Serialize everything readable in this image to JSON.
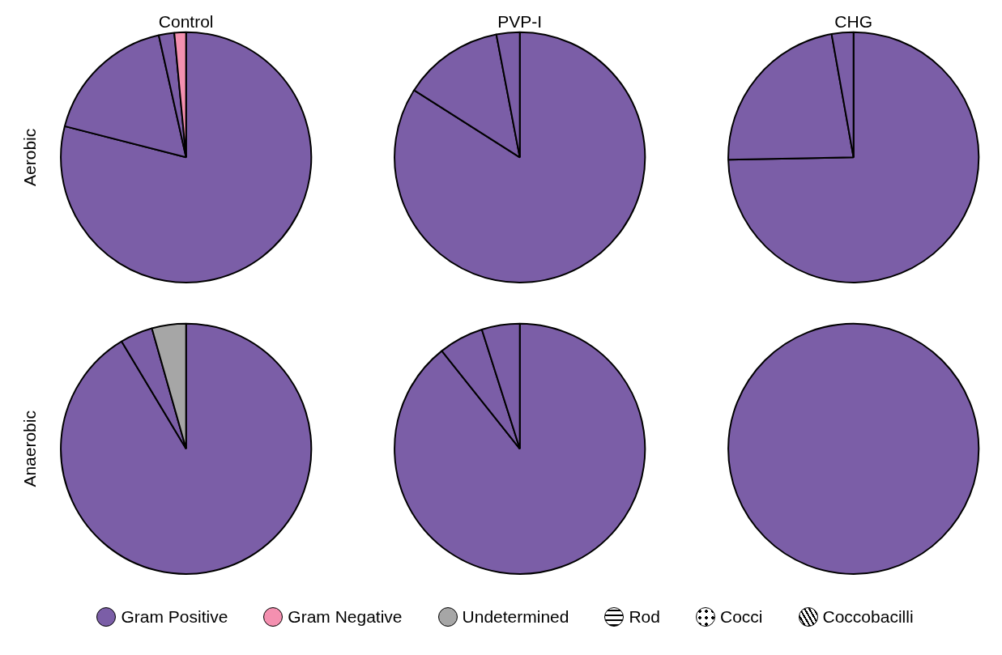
{
  "chart_data": [
    {
      "type": "pie",
      "title": "Control",
      "ylabel": "Aerobic",
      "categories": [
        null,
        null,
        null,
        null
      ],
      "values": [
        79,
        17.5,
        2,
        1.5
      ],
      "colors": [
        "#7b5ea7",
        "#7b5ea7",
        "#7b5ea7",
        "#f490b0"
      ]
    },
    {
      "type": "pie",
      "title": "PVP-I",
      "categories": [
        null,
        null,
        null
      ],
      "values": [
        84,
        13,
        3
      ],
      "colors": [
        "#7b5ea7",
        "#7b5ea7",
        "#7b5ea7"
      ]
    },
    {
      "type": "pie",
      "title": "CHG",
      "categories": [
        null,
        null,
        null
      ],
      "values": [
        74.7,
        22.5,
        2.8
      ],
      "colors": [
        "#7b5ea7",
        "#7b5ea7",
        "#7b5ea7"
      ]
    },
    {
      "type": "pie",
      "ylabel": "Anaerobic",
      "categories": [
        null,
        null,
        null
      ],
      "values": [
        91.4,
        4.2,
        4.4
      ],
      "colors": [
        "#7b5ea7",
        "#7b5ea7",
        "#a6a6a6"
      ]
    },
    {
      "type": "pie",
      "categories": [
        null,
        null,
        null
      ],
      "values": [
        89.3,
        5.8,
        4.9
      ],
      "colors": [
        "#7b5ea7",
        "#7b5ea7",
        "#7b5ea7"
      ]
    },
    {
      "type": "pie",
      "categories": [
        null
      ],
      "values": [
        100
      ],
      "colors": [
        "#7b5ea7"
      ]
    },
    {
      "type": "other",
      "annotations": [
        "Gram Positive",
        "Gram Negative",
        "Undetermined",
        "Rod",
        "Cocci",
        "Coccobacilli"
      ],
      "colors": [
        "#7b5ea7",
        "#f490b0",
        "#a6a6a6",
        "#ffffff",
        "#ffffff",
        "#ffffff"
      ]
    }
  ]
}
